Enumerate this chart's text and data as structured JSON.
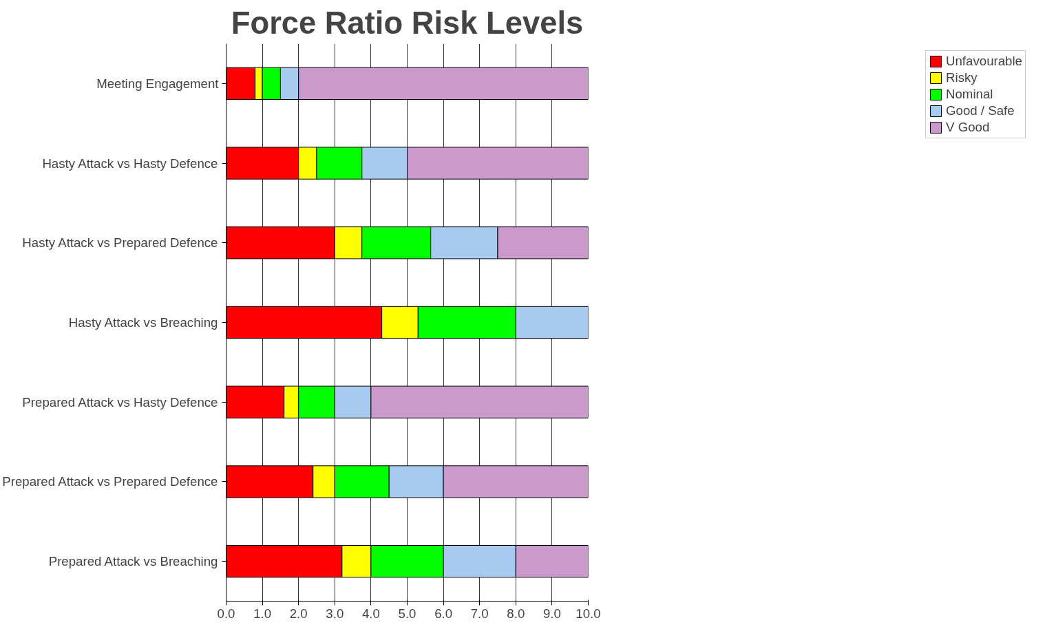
{
  "chart_data": {
    "type": "bar",
    "orientation": "horizontal",
    "stacked": true,
    "title": "Force Ratio Risk Levels",
    "categories": [
      "Meeting Engagement",
      "Hasty Attack vs Hasty Defence",
      "Hasty Attack vs Prepared Defence",
      "Hasty Attack vs Breaching",
      "Prepared Attack vs Hasty Defence",
      "Prepared Attack vs Prepared Defence",
      "Prepared Attack vs Breaching"
    ],
    "series": [
      {
        "name": "Unfavourable",
        "color": "#ff0000",
        "values": [
          0.8,
          2.0,
          3.0,
          4.3,
          1.6,
          2.4,
          3.2
        ]
      },
      {
        "name": "Risky",
        "color": "#ffff00",
        "values": [
          0.2,
          0.5,
          0.75,
          1.0,
          0.4,
          0.6,
          0.8
        ]
      },
      {
        "name": "Nominal",
        "color": "#00ff00",
        "values": [
          0.5,
          1.25,
          1.9,
          2.7,
          1.0,
          1.5,
          2.0
        ]
      },
      {
        "name": "Good / Safe",
        "color": "#a6caf0",
        "values": [
          0.5,
          1.25,
          1.85,
          2.0,
          1.0,
          1.5,
          2.0
        ]
      },
      {
        "name": "V Good",
        "color": "#cc99cc",
        "values": [
          8.0,
          5.0,
          2.5,
          null,
          6.0,
          4.0,
          2.0
        ]
      }
    ],
    "xlim": [
      0,
      10
    ],
    "xticks": [
      {
        "value": 0,
        "label": "0.0"
      },
      {
        "value": 1,
        "label": "1.0"
      },
      {
        "value": 2,
        "label": "2.0"
      },
      {
        "value": 3,
        "label": "3.0"
      },
      {
        "value": 4,
        "label": "4.0"
      },
      {
        "value": 5,
        "label": "5.0"
      },
      {
        "value": 6,
        "label": "6.0"
      },
      {
        "value": 7,
        "label": "7.0"
      },
      {
        "value": 8,
        "label": "8.0"
      },
      {
        "value": 9,
        "label": "9.0"
      },
      {
        "value": 10,
        "label": "10.0"
      }
    ],
    "grid": "x",
    "legend": "right"
  }
}
